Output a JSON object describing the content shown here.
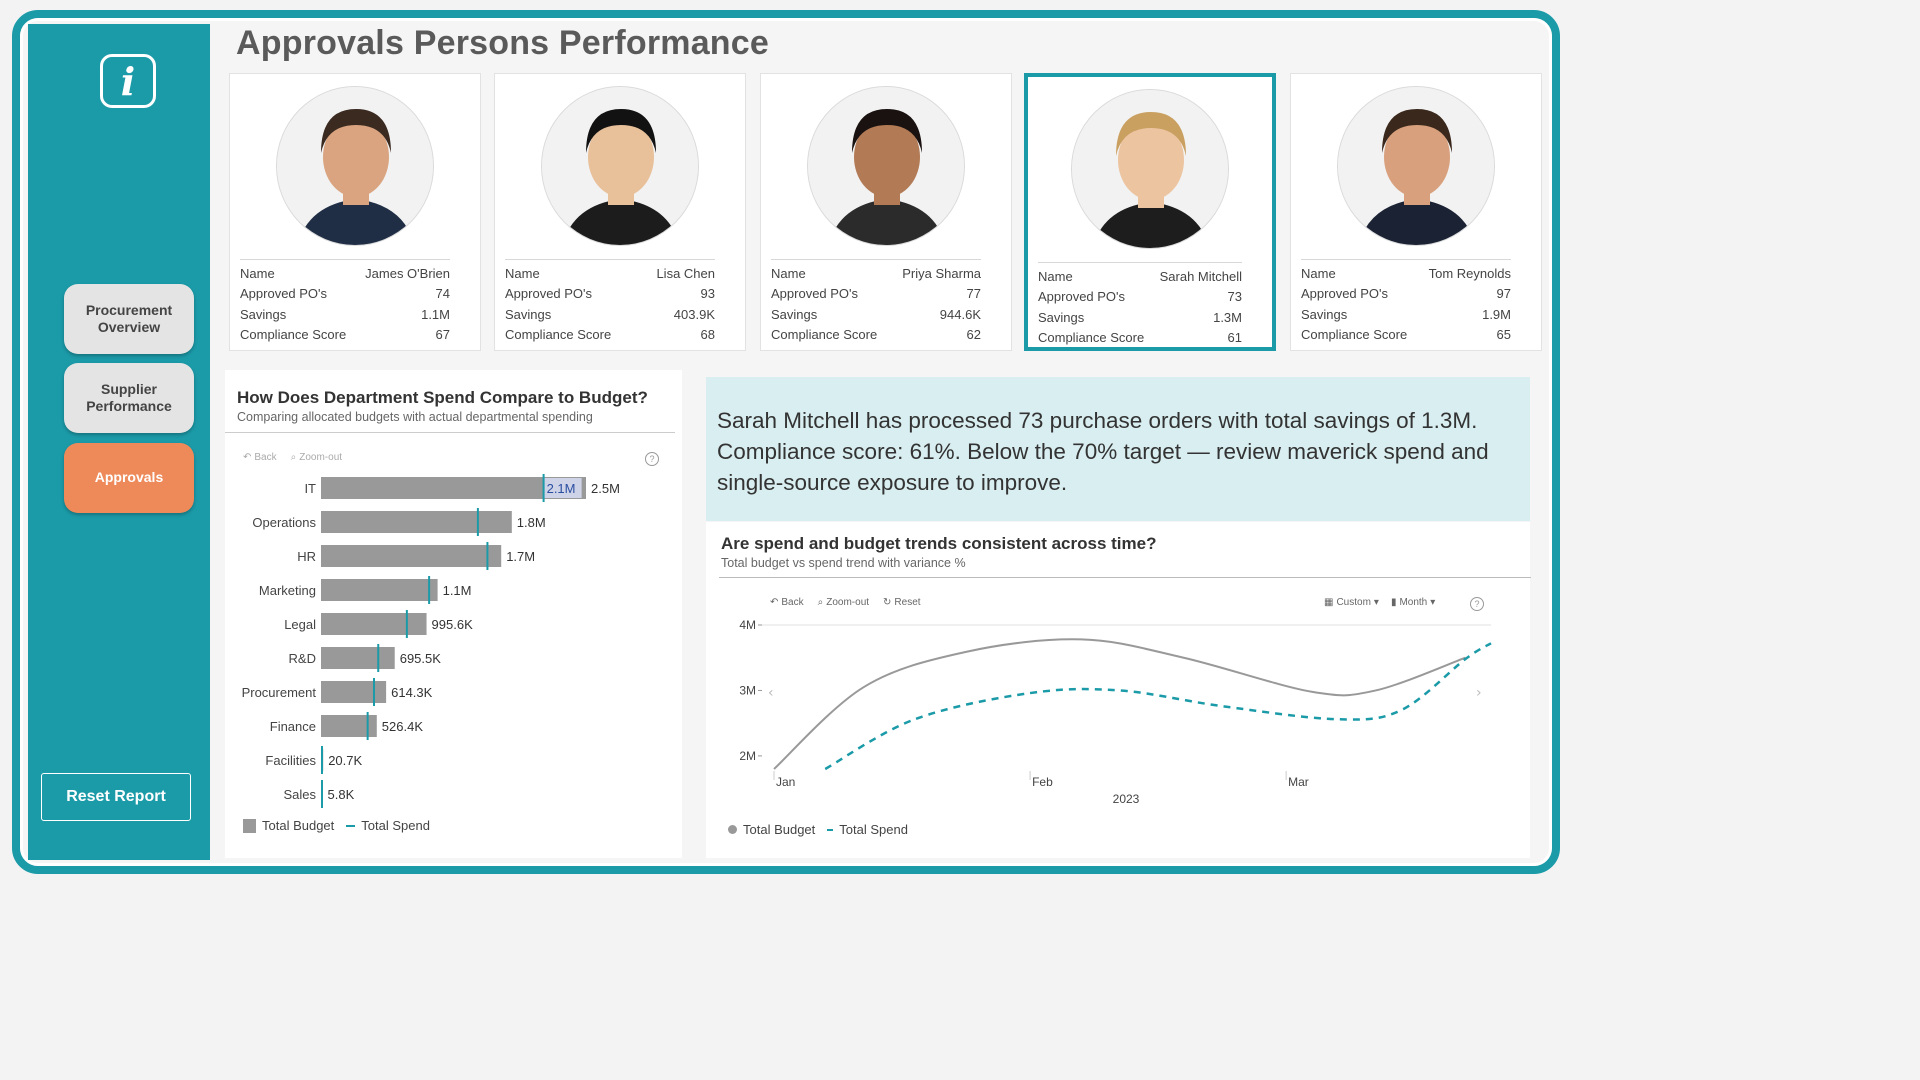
{
  "page": {
    "title": "Approvals Persons  Performance"
  },
  "sidebar": {
    "info_label": "i",
    "nav": [
      {
        "label": "Procurement\nOverview",
        "active": false
      },
      {
        "label": "Supplier\nPerformance",
        "active": false
      },
      {
        "label": "Approvals",
        "active": true
      }
    ],
    "reset_label": "Reset Report"
  },
  "row_labels": {
    "name": "Name",
    "approved": "Approved PO's",
    "savings": "Savings",
    "compliance": "Compliance Score"
  },
  "people": [
    {
      "name": "James O'Brien",
      "approved": "74",
      "savings": "1.1M",
      "compliance": "67",
      "selected": false
    },
    {
      "name": "Lisa Chen",
      "approved": "93",
      "savings": "403.9K",
      "compliance": "68",
      "selected": false
    },
    {
      "name": "Priya Sharma",
      "approved": "77",
      "savings": "944.6K",
      "compliance": "62",
      "selected": false
    },
    {
      "name": "Sarah Mitchell",
      "approved": "73",
      "savings": "1.3M",
      "compliance": "61",
      "selected": true
    },
    {
      "name": "Tom Reynolds",
      "approved": "97",
      "savings": "1.9M",
      "compliance": "65",
      "selected": false
    }
  ],
  "callout": {
    "text": "Sarah Mitchell has processed 73 purchase orders with total savings of 1.3M. Compliance score: 61%. Below the 70% target — review maverick spend and single-source exposure to improve."
  },
  "bar_panel": {
    "title": "How Does Department Spend Compare to Budget?",
    "subtitle": "Comparing allocated budgets with actual departmental spending",
    "toolbar": {
      "back": "Back",
      "zoom_out": "Zoom-out",
      "help": "?"
    },
    "legend": {
      "budget": "Total Budget",
      "spend": "Total Spend"
    }
  },
  "line_panel": {
    "title": "Are spend and budget trends consistent across time?",
    "subtitle": "Total budget vs spend trend with variance %",
    "toolbar": {
      "back": "Back",
      "zoom_out": "Zoom-out",
      "reset": "Reset",
      "custom": "Custom",
      "month": "Month",
      "help": "?"
    },
    "legend": {
      "budget": "Total Budget",
      "spend": "Total Spend"
    }
  },
  "chart_data": [
    {
      "type": "bar",
      "title": "How Does Department Spend Compare to Budget?",
      "subtitle": "Comparing allocated budgets with actual departmental spending",
      "categories": [
        "IT",
        "Operations",
        "HR",
        "Marketing",
        "Legal",
        "R&D",
        "Procurement",
        "Finance",
        "Facilities",
        "Sales"
      ],
      "series": [
        {
          "name": "Total Budget",
          "values": [
            2500000,
            1800000,
            1700000,
            1100000,
            995600,
            695500,
            614300,
            526400,
            20700,
            5800
          ],
          "labels": [
            "2.5M",
            "1.8M",
            "1.7M",
            "1.1M",
            "995.6K",
            "695.5K",
            "614.3K",
            "526.4K",
            "20.7K",
            "5.8K"
          ]
        },
        {
          "name": "Total Spend",
          "values": [
            2100000,
            1480000,
            1570000,
            1020000,
            810000,
            540000,
            500000,
            440000,
            0,
            0
          ]
        }
      ],
      "highlight_label": "2.1M",
      "legend_position": "bottom-left",
      "color_budget": "#999999",
      "color_spend": "#1b9aa8"
    },
    {
      "type": "line",
      "title": "Are spend and budget trends consistent across time?",
      "subtitle": "Total budget vs spend trend with variance %",
      "x_ticks": [
        "Jan",
        "Feb",
        "Mar"
      ],
      "x_axis_label": "2023",
      "y_ticks": [
        "4M",
        "3M",
        "2M"
      ],
      "ylim": [
        1800000,
        4000000
      ],
      "series": [
        {
          "name": "Total Budget",
          "style": "solid",
          "color": "#999999",
          "points": [
            [
              0.0,
              1800000
            ],
            [
              0.35,
              3050000
            ],
            [
              0.75,
              3590000
            ],
            [
              1.2,
              3780000
            ],
            [
              1.6,
              3500000
            ],
            [
              2.1,
              2980000
            ],
            [
              2.35,
              3000000
            ],
            [
              2.7,
              3500000
            ]
          ]
        },
        {
          "name": "Total Spend",
          "style": "dashed",
          "color": "#1b9aa8",
          "points": [
            [
              0.2,
              1800000
            ],
            [
              0.55,
              2560000
            ],
            [
              1.0,
              2960000
            ],
            [
              1.35,
              3000000
            ],
            [
              1.75,
              2760000
            ],
            [
              2.2,
              2560000
            ],
            [
              2.45,
              2700000
            ],
            [
              2.7,
              3480000
            ],
            [
              2.8,
              3720000
            ]
          ]
        }
      ],
      "legend_position": "bottom-left"
    }
  ]
}
